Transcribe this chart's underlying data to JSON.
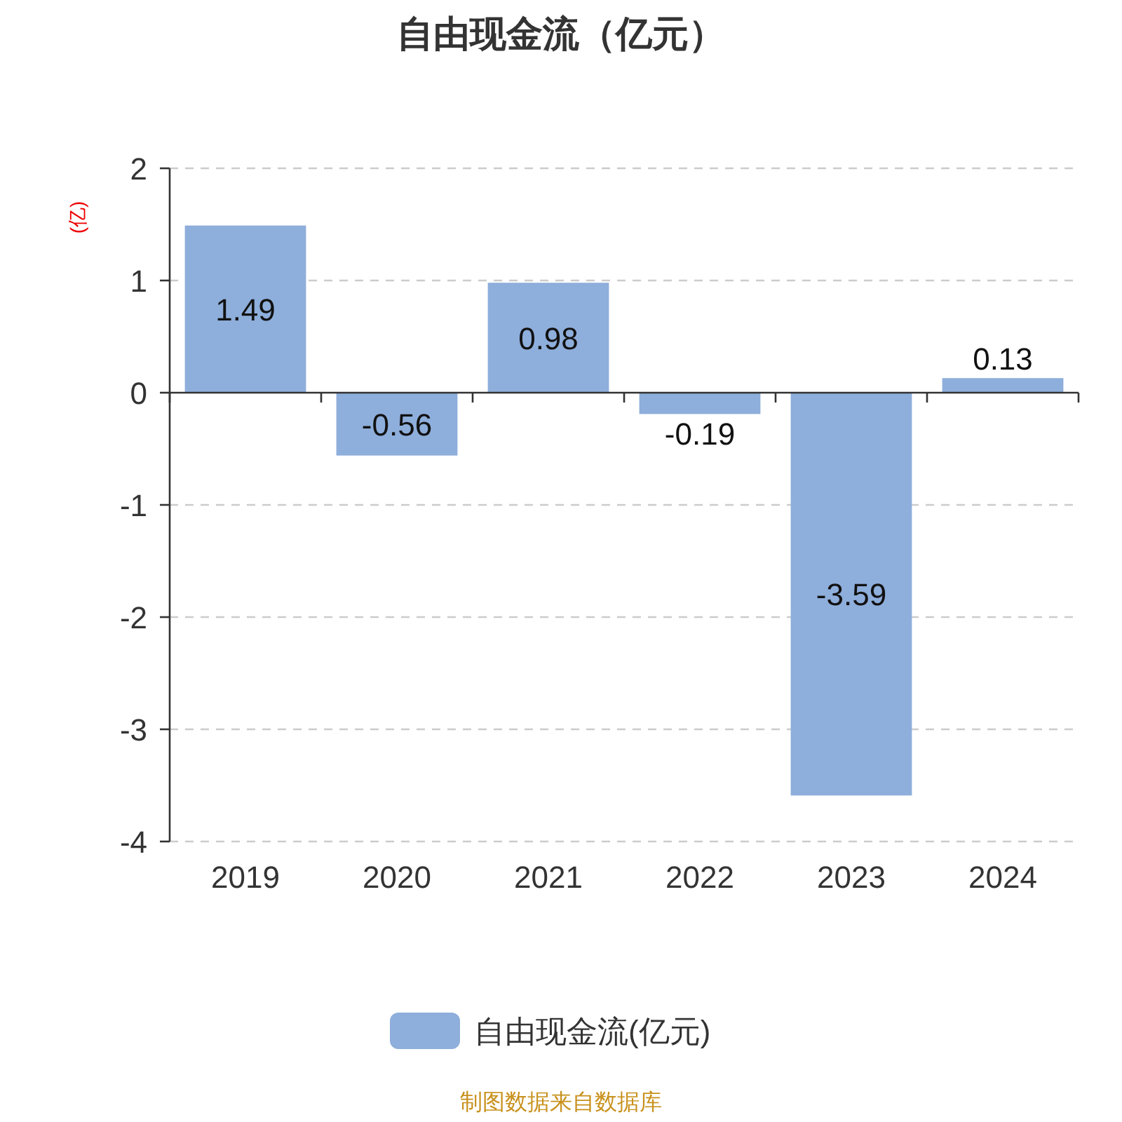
{
  "chart_data": {
    "type": "bar",
    "title": "自由现金流（亿元）",
    "ylabel": "(亿)",
    "categories": [
      "2019",
      "2020",
      "2021",
      "2022",
      "2023",
      "2024"
    ],
    "series": [
      {
        "name": "自由现金流(亿元)",
        "color": "#8eaedb",
        "values": [
          1.49,
          -0.56,
          0.98,
          -0.19,
          -3.59,
          0.13
        ]
      }
    ],
    "ylim": [
      -4,
      2
    ],
    "yticks": [
      -4,
      -3,
      -2,
      -1,
      0,
      1,
      2
    ],
    "grid": "y",
    "legend": "bottom",
    "data_labels": true,
    "annotations": [
      "制图数据来自数据库"
    ]
  }
}
